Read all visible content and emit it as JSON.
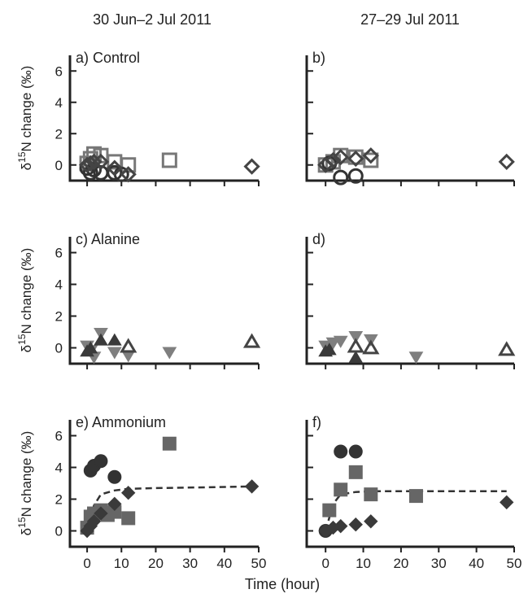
{
  "figure": {
    "col_titles": [
      "30 Jun–2 Jul 2011",
      "27–29 Jul 2011"
    ],
    "xlabel": "Time (hour)",
    "ylabel_prefix": "δ",
    "ylabel_sup": "15",
    "ylabel_suffix": "N change (‰)"
  },
  "chart_data": [
    {
      "type": "scatter",
      "title": "a) Control",
      "xlabel": "",
      "ylabel": "δ15N change (‰)",
      "xlim": [
        -5,
        50
      ],
      "ylim": [
        -1,
        7
      ],
      "yticks": [
        0,
        2,
        4,
        6
      ],
      "xticks": [],
      "series": [
        {
          "marker": "square-open",
          "color": "#777777",
          "points": [
            [
              0,
              0.1
            ],
            [
              1,
              0.4
            ],
            [
              2,
              0.7
            ],
            [
              4,
              0.6
            ],
            [
              8,
              0.2
            ],
            [
              12,
              0.0
            ],
            [
              24,
              0.3
            ]
          ]
        },
        {
          "marker": "circle-open",
          "color": "#333333",
          "points": [
            [
              0,
              -0.2
            ],
            [
              1,
              -0.5
            ],
            [
              2,
              -0.3
            ],
            [
              4,
              -0.5
            ],
            [
              8,
              -0.5
            ],
            [
              10,
              -0.6
            ]
          ]
        },
        {
          "marker": "diamond-open",
          "color": "#444444",
          "points": [
            [
              0,
              0.0
            ],
            [
              1,
              0.1
            ],
            [
              2,
              0.2
            ],
            [
              4,
              0.2
            ],
            [
              8,
              -0.2
            ],
            [
              12,
              -0.6
            ],
            [
              48,
              -0.1
            ]
          ]
        }
      ]
    },
    {
      "type": "scatter",
      "title": "b)",
      "xlabel": "",
      "ylabel": "",
      "xlim": [
        -5,
        50
      ],
      "ylim": [
        -1,
        7
      ],
      "yticks": [
        0,
        2,
        4,
        6
      ],
      "xticks": [],
      "series": [
        {
          "marker": "square-open",
          "color": "#777777",
          "points": [
            [
              0,
              0.0
            ],
            [
              2,
              0.2
            ],
            [
              4,
              0.6
            ],
            [
              8,
              0.5
            ],
            [
              12,
              0.3
            ]
          ]
        },
        {
          "marker": "circle-open",
          "color": "#333333",
          "points": [
            [
              1,
              0.1
            ],
            [
              4,
              -0.8
            ],
            [
              8,
              -0.7
            ]
          ]
        },
        {
          "marker": "diamond-open",
          "color": "#444444",
          "points": [
            [
              0,
              0.0
            ],
            [
              2,
              0.3
            ],
            [
              4,
              0.5
            ],
            [
              8,
              0.4
            ],
            [
              12,
              0.6
            ],
            [
              48,
              0.2
            ]
          ]
        }
      ]
    },
    {
      "type": "scatter",
      "title": "c) Alanine",
      "xlabel": "",
      "ylabel": "δ15N change (‰)",
      "xlim": [
        -5,
        50
      ],
      "ylim": [
        -1,
        7
      ],
      "yticks": [
        0,
        2,
        4,
        6
      ],
      "xticks": [],
      "series": [
        {
          "marker": "triangle-down-filled",
          "color": "#7f7f7f",
          "points": [
            [
              0,
              0.1
            ],
            [
              1,
              -0.2
            ],
            [
              2,
              -0.6
            ],
            [
              4,
              0.9
            ],
            [
              8,
              -0.3
            ],
            [
              12,
              -0.5
            ],
            [
              24,
              -0.3
            ]
          ]
        },
        {
          "marker": "triangle-up-filled",
          "color": "#3a3a3a",
          "points": [
            [
              0,
              -0.2
            ],
            [
              1,
              0.0
            ],
            [
              4,
              0.5
            ],
            [
              8,
              0.5
            ]
          ]
        },
        {
          "marker": "triangle-up-open",
          "color": "#444444",
          "points": [
            [
              12,
              0.1
            ],
            [
              48,
              0.4
            ]
          ]
        }
      ]
    },
    {
      "type": "scatter",
      "title": "d)",
      "xlabel": "",
      "ylabel": "",
      "xlim": [
        -5,
        50
      ],
      "ylim": [
        -1,
        7
      ],
      "yticks": [
        0,
        2,
        4,
        6
      ],
      "xticks": [],
      "series": [
        {
          "marker": "triangle-down-filled",
          "color": "#7f7f7f",
          "points": [
            [
              0,
              0.1
            ],
            [
              1,
              0.0
            ],
            [
              2,
              0.3
            ],
            [
              4,
              0.4
            ],
            [
              8,
              0.7
            ],
            [
              12,
              0.5
            ],
            [
              24,
              -0.6
            ]
          ]
        },
        {
          "marker": "triangle-up-filled",
          "color": "#3a3a3a",
          "points": [
            [
              0,
              -0.2
            ],
            [
              1,
              -0.1
            ],
            [
              8,
              -0.6
            ]
          ]
        },
        {
          "marker": "triangle-up-open",
          "color": "#444444",
          "points": [
            [
              8,
              0.1
            ],
            [
              12,
              0.0
            ],
            [
              48,
              -0.1
            ]
          ]
        }
      ]
    },
    {
      "type": "scatter",
      "title": "e) Ammonium",
      "xlabel": "",
      "ylabel": "δ15N change (‰)",
      "xlim": [
        -5,
        50
      ],
      "ylim": [
        -1,
        7
      ],
      "yticks": [
        0,
        2,
        4,
        6
      ],
      "xticks": [
        0,
        10,
        20,
        30,
        40,
        50
      ],
      "series": [
        {
          "marker": "circle-filled",
          "color": "#333333",
          "points": [
            [
              1,
              3.8
            ],
            [
              2,
              4.1
            ],
            [
              4,
              4.4
            ],
            [
              8,
              3.4
            ]
          ]
        },
        {
          "marker": "square-filled",
          "color": "#666666",
          "points": [
            [
              0,
              0.2
            ],
            [
              1,
              0.9
            ],
            [
              2,
              1.1
            ],
            [
              4,
              1.3
            ],
            [
              6,
              1.0
            ],
            [
              8,
              1.2
            ],
            [
              12,
              0.8
            ],
            [
              24,
              5.5
            ]
          ]
        },
        {
          "marker": "diamond-filled",
          "color": "#3a3a3a",
          "points": [
            [
              0,
              0.0
            ],
            [
              1,
              0.3
            ],
            [
              2,
              0.6
            ],
            [
              4,
              1.1
            ],
            [
              8,
              1.7
            ],
            [
              12,
              2.4
            ],
            [
              48,
              2.8
            ]
          ]
        }
      ],
      "fit_line": {
        "style": "dashed",
        "points": [
          [
            0,
            0.0
          ],
          [
            2,
            1.6
          ],
          [
            4,
            2.3
          ],
          [
            8,
            2.55
          ],
          [
            12,
            2.65
          ],
          [
            20,
            2.7
          ],
          [
            35,
            2.75
          ],
          [
            48,
            2.8
          ]
        ]
      }
    },
    {
      "type": "scatter",
      "title": "f)",
      "xlabel": "",
      "ylabel": "",
      "xlim": [
        -5,
        50
      ],
      "ylim": [
        -1,
        7
      ],
      "yticks": [
        0,
        2,
        4,
        6
      ],
      "xticks": [
        0,
        10,
        20,
        30,
        40,
        50
      ],
      "series": [
        {
          "marker": "circle-filled",
          "color": "#333333",
          "points": [
            [
              0,
              0.0
            ],
            [
              4,
              5.0
            ],
            [
              8,
              5.0
            ]
          ]
        },
        {
          "marker": "square-filled",
          "color": "#666666",
          "points": [
            [
              1,
              1.3
            ],
            [
              4,
              2.6
            ],
            [
              8,
              3.7
            ],
            [
              12,
              2.3
            ],
            [
              24,
              2.2
            ]
          ]
        },
        {
          "marker": "diamond-filled",
          "color": "#3a3a3a",
          "points": [
            [
              0,
              0.0
            ],
            [
              2,
              0.2
            ],
            [
              4,
              0.3
            ],
            [
              8,
              0.4
            ],
            [
              12,
              0.6
            ],
            [
              48,
              1.8
            ]
          ]
        }
      ],
      "fit_line": {
        "style": "dashed",
        "points": [
          [
            0,
            0.0
          ],
          [
            2,
            1.7
          ],
          [
            4,
            2.3
          ],
          [
            8,
            2.45
          ],
          [
            12,
            2.5
          ],
          [
            24,
            2.5
          ],
          [
            48,
            2.5
          ]
        ]
      }
    }
  ]
}
